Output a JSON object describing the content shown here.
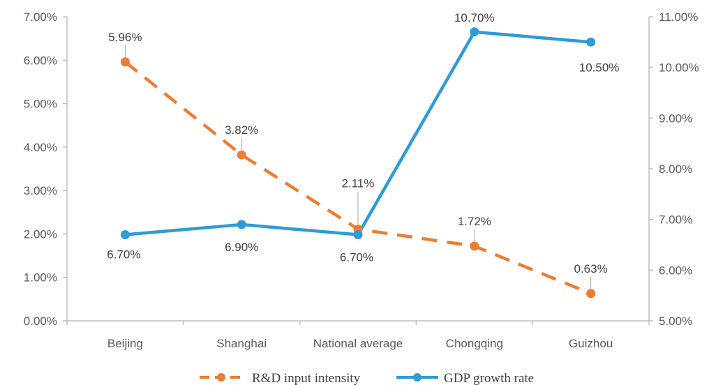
{
  "chart_data": {
    "type": "line",
    "categories": [
      "Beijing",
      "Shanghai",
      "National average",
      "Chongqing",
      "Guizhou"
    ],
    "series": [
      {
        "name": "R&D input intensity",
        "axis": "left",
        "values": [
          5.96,
          3.82,
          2.11,
          1.72,
          0.63
        ],
        "labels": [
          "5.96%",
          "3.82%",
          "2.11%",
          "1.72%",
          "0.63%"
        ],
        "color": "#ED7D31",
        "line_style": "dashed"
      },
      {
        "name": "GDP growth rate",
        "axis": "right",
        "values": [
          6.7,
          6.9,
          6.7,
          10.7,
          10.5
        ],
        "labels": [
          "6.70%",
          "6.90%",
          "6.70%",
          "10.70%",
          "10.50%"
        ],
        "color": "#2E9BD6",
        "line_style": "solid"
      }
    ],
    "y_left": {
      "lim": [
        0,
        7
      ],
      "ticks": [
        "0.00%",
        "1.00%",
        "2.00%",
        "3.00%",
        "4.00%",
        "5.00%",
        "6.00%",
        "7.00%"
      ]
    },
    "y_right": {
      "lim": [
        5,
        11
      ],
      "ticks": [
        "5.00%",
        "6.00%",
        "7.00%",
        "8.00%",
        "9.00%",
        "10.00%",
        "11.00%"
      ]
    },
    "grid": false,
    "legend": "bottom"
  }
}
